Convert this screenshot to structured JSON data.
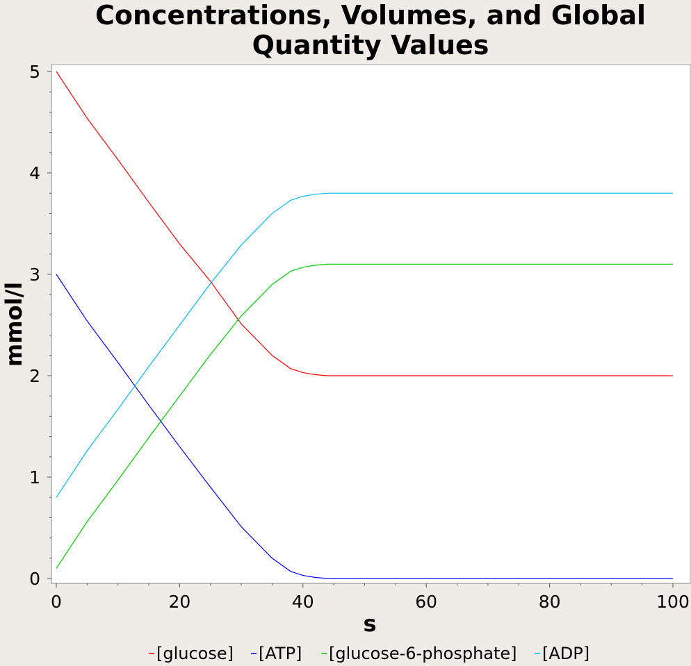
{
  "chart_data": {
    "type": "line",
    "title_lines": [
      "Concentrations, Volumes, and Global",
      "Quantity Values"
    ],
    "xlabel": "s",
    "ylabel": "mmol/l",
    "xlim": [
      0,
      100
    ],
    "ylim": [
      0,
      5
    ],
    "xticks": [
      0,
      20,
      40,
      60,
      80,
      100
    ],
    "yticks": [
      0,
      1,
      2,
      3,
      4,
      5
    ],
    "grid": false,
    "legend_position": "bottom",
    "x": [
      0,
      5,
      10,
      15,
      20,
      25,
      30,
      35,
      38,
      40,
      42,
      44,
      50,
      60,
      70,
      80,
      90,
      100
    ],
    "series": [
      {
        "name": "[glucose]",
        "color": "#ff0000",
        "values": [
          5.0,
          4.54,
          4.13,
          3.71,
          3.3,
          2.93,
          2.51,
          2.2,
          2.07,
          2.03,
          2.01,
          2.0,
          2.0,
          2.0,
          2.0,
          2.0,
          2.0,
          2.0
        ]
      },
      {
        "name": "[ATP]",
        "color": "#0000ff",
        "values": [
          3.0,
          2.54,
          2.13,
          1.71,
          1.3,
          0.9,
          0.51,
          0.2,
          0.07,
          0.03,
          0.01,
          0.0,
          0.0,
          0.0,
          0.0,
          0.0,
          0.0,
          0.0
        ]
      },
      {
        "name": "[glucose-6-phosphate]",
        "color": "#00cc00",
        "values": [
          0.1,
          0.56,
          0.97,
          1.39,
          1.8,
          2.21,
          2.59,
          2.9,
          3.03,
          3.07,
          3.09,
          3.1,
          3.1,
          3.1,
          3.1,
          3.1,
          3.1,
          3.1
        ]
      },
      {
        "name": "[ADP]",
        "color": "#00bbee",
        "values": [
          0.8,
          1.26,
          1.67,
          2.09,
          2.5,
          2.91,
          3.29,
          3.6,
          3.73,
          3.77,
          3.79,
          3.8,
          3.8,
          3.8,
          3.8,
          3.8,
          3.8,
          3.8
        ]
      }
    ]
  }
}
